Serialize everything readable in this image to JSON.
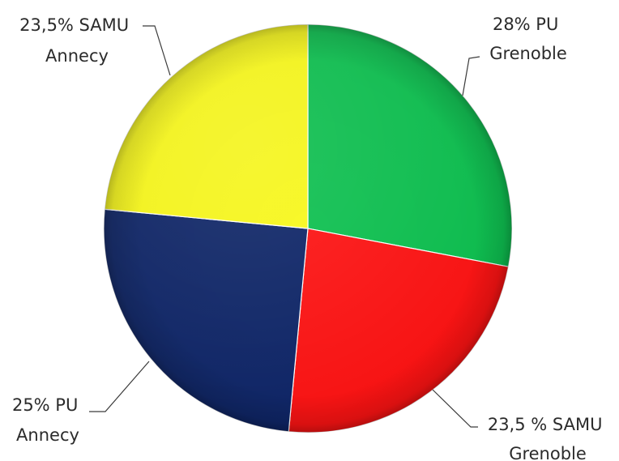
{
  "chart_data": {
    "type": "pie",
    "slices": [
      {
        "label_lines": [
          "28% PU",
          "Grenoble"
        ],
        "value": 28,
        "color": "#0dbf4f"
      },
      {
        "label_lines": [
          "23,5 % SAMU",
          "Grenoble"
        ],
        "value": 23.5,
        "color": "#fc1313"
      },
      {
        "label_lines": [
          "25% PU",
          "Annecy"
        ],
        "value": 25,
        "color": "#0e2567"
      },
      {
        "label_lines": [
          "23,5% SAMU",
          "Annecy"
        ],
        "value": 23.5,
        "color": "#f7f71a"
      }
    ],
    "start_angle": "12 o'clock",
    "direction": "clockwise",
    "legend": "none",
    "labels": "outside with leader lines"
  }
}
